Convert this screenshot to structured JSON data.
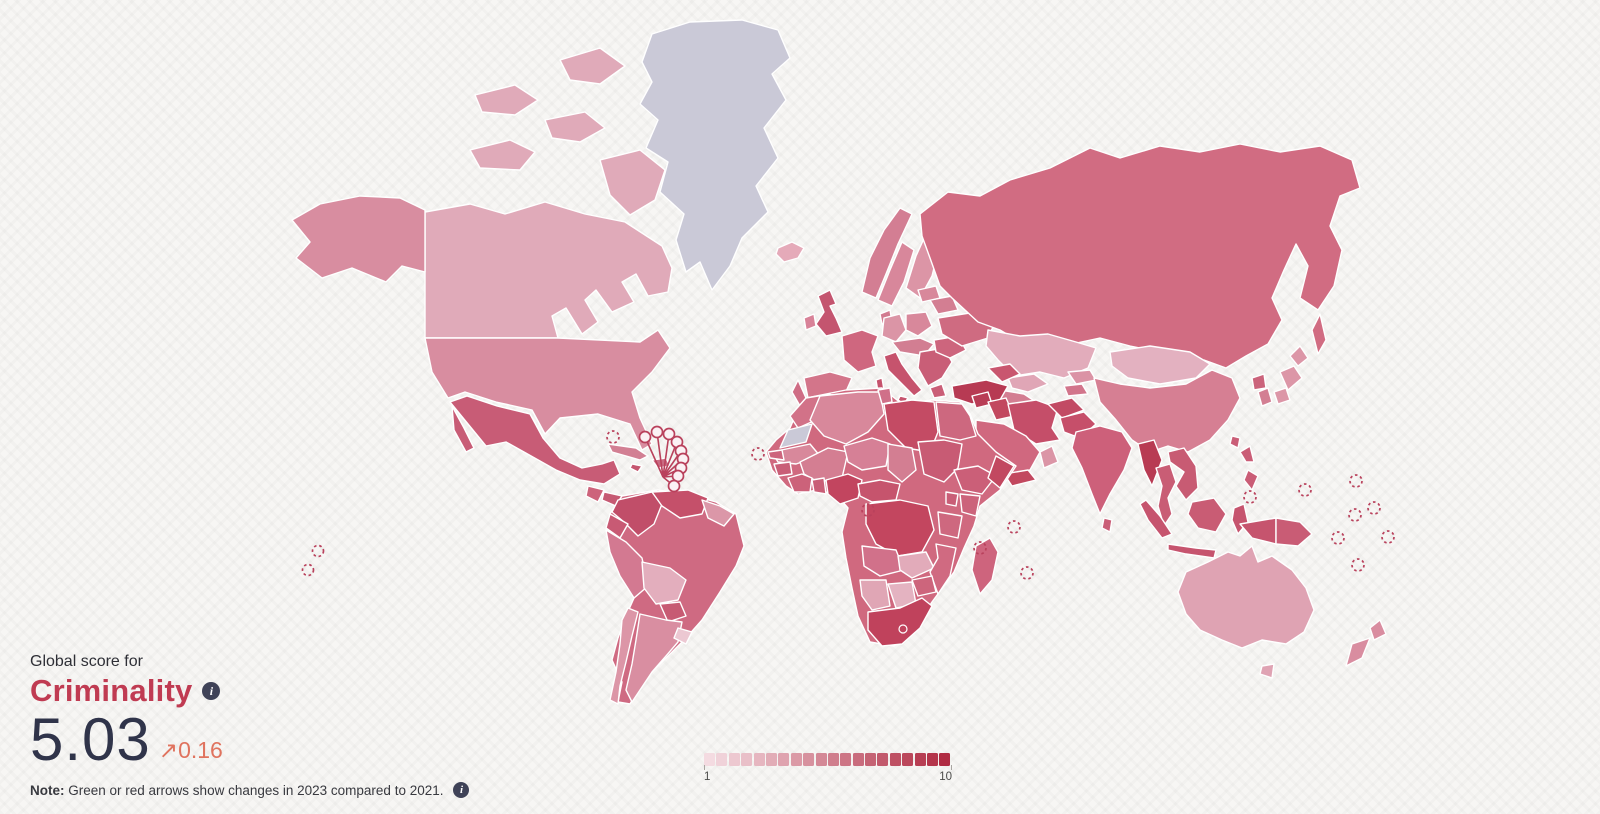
{
  "page": {
    "title_eyebrow": "Global score for",
    "metric_title": "Criminality",
    "score": "5.03",
    "delta_arrow": "↗",
    "delta_value": "0.16",
    "note_label": "Note:",
    "note_text": "Green or red arrows show changes in 2023 compared to 2021.",
    "info_glyph": "i"
  },
  "legend": {
    "min_label": "1",
    "max_label": "10",
    "steps": 20,
    "start_color": "#f4dbe1",
    "end_color": "#b02b42"
  },
  "theme": {
    "background": "#f7f6f4",
    "title_color": "#c03b52",
    "score_color": "#30344a",
    "delta_color": "#e0735e",
    "info_icon_bg": "#3f4257",
    "island_stroke": "#b9415c",
    "border_color": "#ffffff",
    "no_data_color": "#cac9d7"
  },
  "map": {
    "regions": {
      "greenland": "#cac9d7",
      "western-sahara": "#cac9d7",
      "canada": "#e0aab9",
      "alaska": "#d88da0",
      "usa": "#d88da0",
      "mexico": "#c85c76",
      "guatemala": "#cd637b",
      "honduras": "#c65a73",
      "nicaragua": "#ca5f78",
      "costa-rica": "#d1708a",
      "panama": "#cc6880",
      "cuba": "#d27f93",
      "hispaniola": "#c96b82",
      "jamaica": "#c5566f",
      "colombia": "#c14e69",
      "venezuela": "#c5506a",
      "guyanas": "#db97a8",
      "brazil": "#cf6a82",
      "ecuador": "#c85a74",
      "peru": "#d37991",
      "bolivia": "#e3aebd",
      "paraguay": "#c75b73",
      "chile": "#dc96a7",
      "argentina": "#d98ea1",
      "uruguay": "#ecc8d2",
      "iceland": "#e5aab9",
      "united-kingdom": "#c4556f",
      "ireland": "#d88298",
      "norway": "#d37e93",
      "sweden": "#d8879b",
      "finland": "#dc95a6",
      "denmark": "#d27b90",
      "france": "#cf677f",
      "spain": "#d3758a",
      "portugal": "#cf6d85",
      "germany": "#db95a6",
      "poland": "#d8889b",
      "central-europe": "#d27e92",
      "italy": "#c6536d",
      "balkans": "#c95e77",
      "greece": "#ca5e77",
      "romania": "#cd657d",
      "ukraine": "#cf6b81",
      "belarus": "#d37e92",
      "baltics": "#d8889b",
      "turkey": "#b73a53",
      "caucasus": "#c9566f",
      "russia": "#d16c82",
      "kazakhstan": "#e2acbb",
      "uzbekistan": "#e0a6b6",
      "turkmenistan": "#d37e92",
      "kyrgyzstan": "#db93a5",
      "tajikistan": "#d2758b",
      "mongolia": "#e3b1c0",
      "china": "#d67f93",
      "japan": "#dc96a7",
      "south-korea": "#d37f93",
      "north-korea": "#cb637b",
      "taiwan": "#ca5e77",
      "india": "#cd607a",
      "pakistan": "#c64f6a",
      "afghanistan": "#c24a64",
      "iran": "#c54e69",
      "iraq": "#c2485f",
      "syria": "#b93d56",
      "saudi-arabia": "#d0687f",
      "yemen": "#c2485f",
      "oman": "#db95a6",
      "myanmar": "#b83b53",
      "thailand": "#c95d75",
      "indochina": "#c85b73",
      "sumatra": "#c6546e",
      "java": "#c6546e",
      "borneo": "#c95c74",
      "sulawesi": "#c6546e",
      "west-new-guinea": "#c6546e",
      "papua-new-guinea": "#c95c75",
      "philippines": "#ca5d76",
      "sri-lanka": "#ca5e77",
      "morocco": "#d27288",
      "mauritania": "#d8889b",
      "mali": "#d47e92",
      "senegal": "#cd657d",
      "guinea": "#c95e77",
      "ivory-coast": "#cc627a",
      "ghana": "#c95e76",
      "nigeria": "#c2455f",
      "algeria": "#d8889b",
      "tunisia": "#d07089",
      "libya": "#c44b64",
      "egypt": "#cd687f",
      "niger": "#d68096",
      "chad": "#d37e92",
      "sudan": "#c85b74",
      "ethiopia": "#cb5f78",
      "somalia": "#c24860",
      "kenya": "#cc637b",
      "uganda": "#c95e77",
      "drc": "#c3465f",
      "cameroon": "#c6546d",
      "africa-base": "#d0697f",
      "tanzania": "#ce687f",
      "angola": "#d1718a",
      "zambia": "#e2abba",
      "mozambique": "#d06a81",
      "zimbabwe": "#cd657c",
      "namibia": "#e0a6b5",
      "botswana": "#e4b3c1",
      "south-africa": "#c0425c",
      "lesotho": "#c0425c",
      "madagascar": "#ce647d",
      "australia": "#dfa3b3",
      "tasmania": "#dfa3b3",
      "new-zealand": "#d98da0"
    }
  }
}
